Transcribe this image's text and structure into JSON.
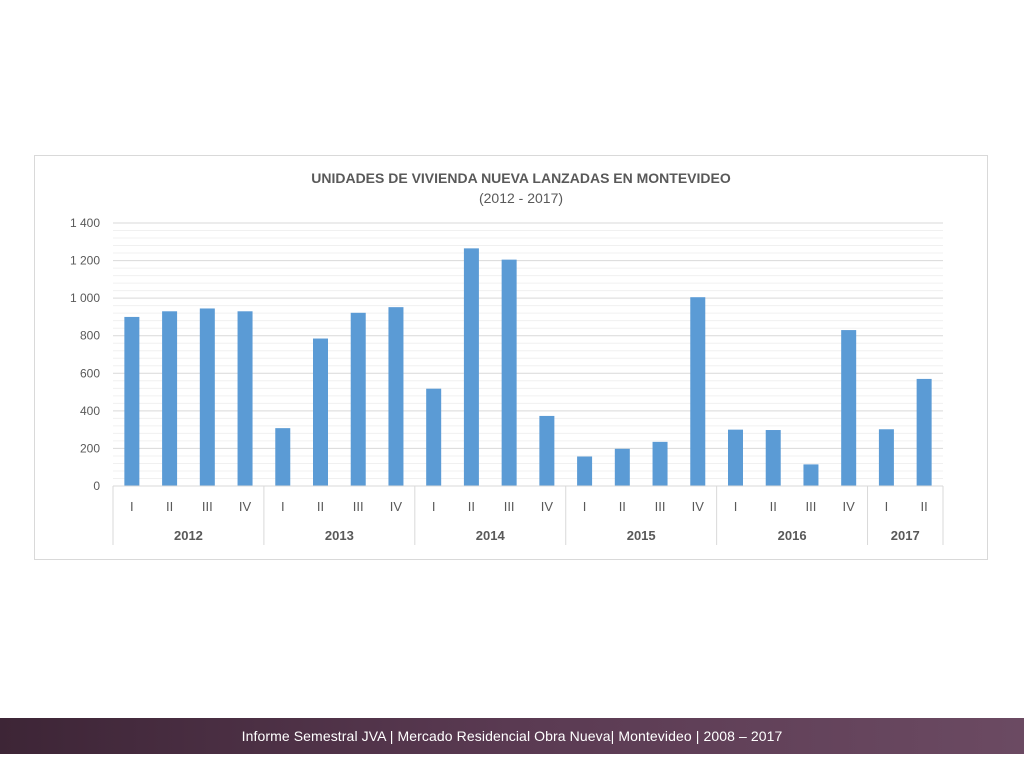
{
  "chart_data": {
    "type": "bar",
    "title": "UNIDADES DE VIVIENDA NUEVA LANZADAS EN MONTEVIDEO",
    "subtitle": "(2012 - 2017)",
    "xlabel": "",
    "ylabel": "",
    "ylim": [
      0,
      1400
    ],
    "yticks": [
      "0",
      "200",
      "400",
      "600",
      "800",
      "1 000",
      "1 200",
      "1 400"
    ],
    "ytick_values": [
      0,
      200,
      400,
      600,
      800,
      1000,
      1200,
      1400
    ],
    "grid": true,
    "color": "#5b9bd5",
    "groups": [
      {
        "year": "2012",
        "quarters": [
          "I",
          "II",
          "III",
          "IV"
        ],
        "values": [
          900,
          930,
          945,
          930
        ]
      },
      {
        "year": "2013",
        "quarters": [
          "I",
          "II",
          "III",
          "IV"
        ],
        "values": [
          308,
          785,
          922,
          952
        ]
      },
      {
        "year": "2014",
        "quarters": [
          "I",
          "II",
          "III",
          "IV"
        ],
        "values": [
          518,
          1265,
          1205,
          373
        ]
      },
      {
        "year": "2015",
        "quarters": [
          "I",
          "II",
          "III",
          "IV"
        ],
        "values": [
          157,
          198,
          235,
          1005
        ]
      },
      {
        "year": "2016",
        "quarters": [
          "I",
          "II",
          "III",
          "IV"
        ],
        "values": [
          300,
          298,
          115,
          830
        ]
      },
      {
        "year": "2017",
        "quarters": [
          "I",
          "II"
        ],
        "values": [
          302,
          570
        ]
      }
    ]
  },
  "footer": {
    "text": "Informe Semestral JVA | Mercado Residencial Obra Nueva| Montevideo | 2008 – 2017"
  }
}
